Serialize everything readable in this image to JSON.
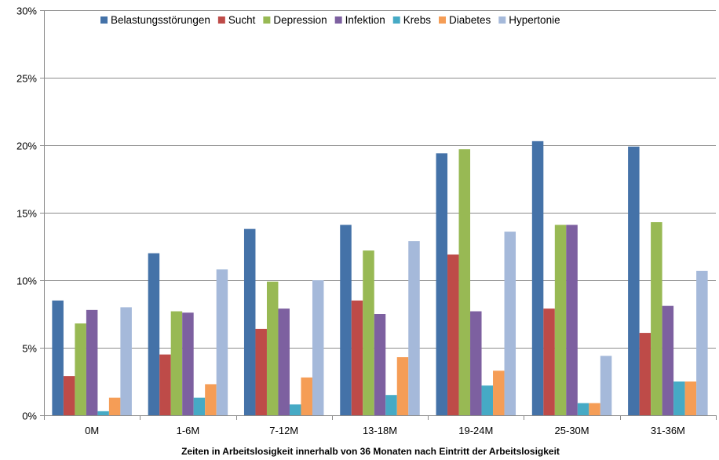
{
  "chart_data": {
    "type": "bar",
    "title": "",
    "xlabel": "Zeiten in Arbeitslosigkeit innerhalb von 36 Monaten nach Eintritt der Arbeitslosigkeit",
    "ylabel": "",
    "ylim": [
      0,
      30
    ],
    "y_ticks": [
      0,
      5,
      10,
      15,
      20,
      25,
      30
    ],
    "y_tick_labels": [
      "0%",
      "5%",
      "10%",
      "15%",
      "20%",
      "25%",
      "30%"
    ],
    "grid": true,
    "legend_position": "top",
    "categories": [
      "0M",
      "1-6M",
      "7-12M",
      "13-18M",
      "19-24M",
      "25-30M",
      "31-36M"
    ],
    "series": [
      {
        "name": "Belastungsstörungen",
        "color": "#4472A8",
        "values": [
          8.5,
          12.0,
          13.8,
          14.1,
          19.4,
          20.3,
          19.9
        ]
      },
      {
        "name": "Sucht",
        "color": "#BE4B48",
        "values": [
          2.9,
          4.5,
          6.4,
          8.5,
          11.9,
          7.9,
          6.1
        ]
      },
      {
        "name": "Depression",
        "color": "#98B954",
        "values": [
          6.8,
          7.7,
          9.9,
          12.2,
          19.7,
          14.1,
          14.3
        ]
      },
      {
        "name": "Infektion",
        "color": "#7D60A0",
        "values": [
          7.8,
          7.6,
          7.9,
          7.5,
          7.7,
          14.1,
          8.1
        ]
      },
      {
        "name": "Krebs",
        "color": "#46AAC5",
        "values": [
          0.3,
          1.3,
          0.8,
          1.5,
          2.2,
          0.9,
          2.5
        ]
      },
      {
        "name": "Diabetes",
        "color": "#F59D56",
        "values": [
          1.3,
          2.3,
          2.8,
          4.3,
          3.3,
          0.9,
          2.5
        ]
      },
      {
        "name": "Hypertonie",
        "color": "#A5B9DA",
        "values": [
          8.0,
          10.8,
          10.0,
          12.9,
          13.6,
          4.4,
          10.7
        ]
      }
    ]
  }
}
